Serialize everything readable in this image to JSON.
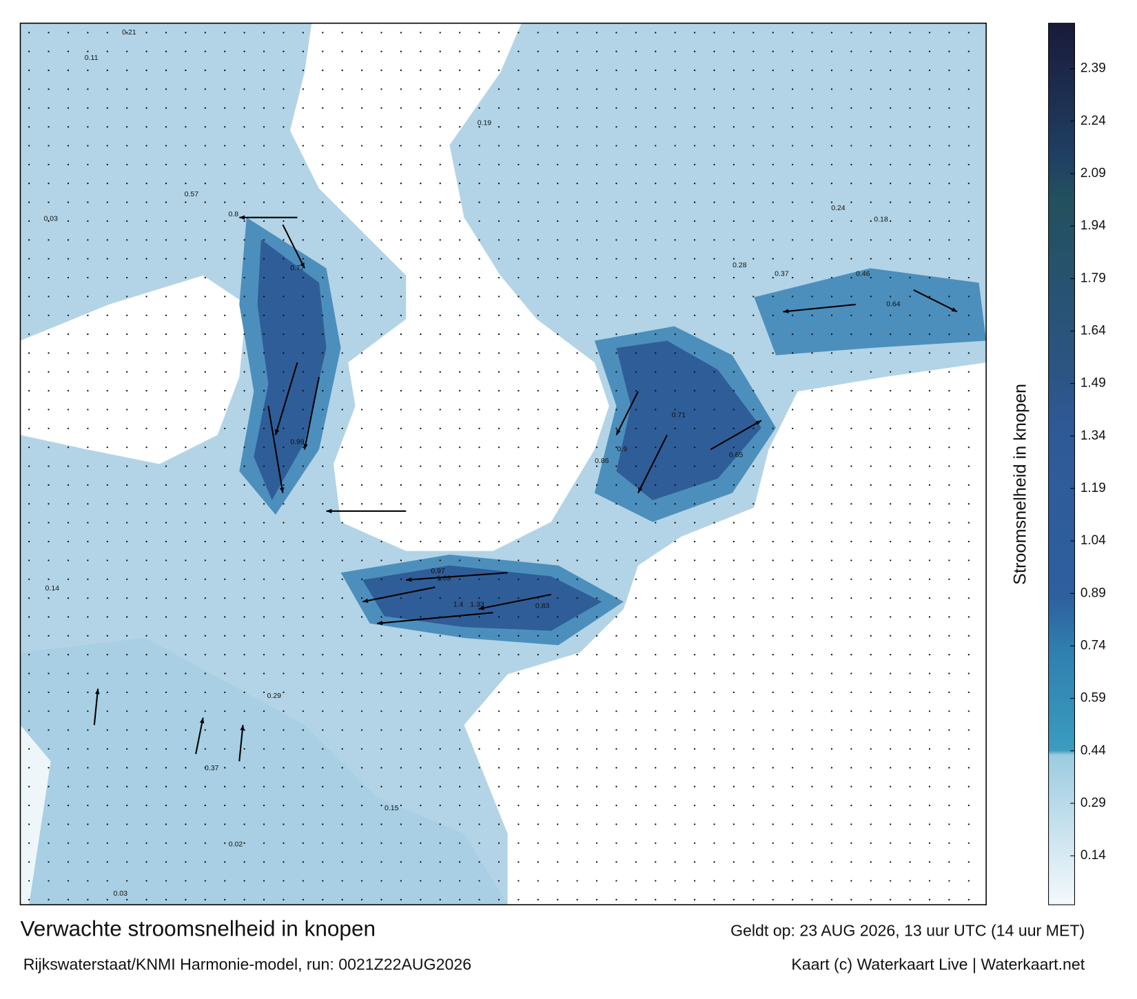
{
  "title": "Verwachte stroomsnelheid in knopen",
  "subtitle": "Rijkswaterstaat/KNMI Harmonie-model, run: 0021Z22AUG2026",
  "valid_time": "Geldt op: 23 AUG 2026, 13 uur UTC (14 uur MET)",
  "credit": "Kaart (c) Waterkaart Live | Waterkaart.net",
  "colorbar": {
    "label": "Stroomsnelheid in knopen",
    "lim": [
      0,
      2.52
    ],
    "ticks": [
      0.14,
      0.29,
      0.44,
      0.59,
      0.74,
      0.89,
      1.04,
      1.19,
      1.34,
      1.49,
      1.64,
      1.79,
      1.94,
      2.09,
      2.24,
      2.39
    ]
  },
  "map_labels": [
    0.21,
    0.11,
    0.57,
    0.8,
    0.77,
    0.99,
    1.09,
    1.33,
    1.4,
    0.97,
    0.83,
    0.86,
    0.9,
    0.71,
    0.65,
    0.64,
    0.46,
    0.37,
    0.28,
    0.19,
    0.03,
    0.14,
    0.29,
    0.37,
    0.24,
    0.18,
    0.15,
    0.02,
    0.03
  ]
}
